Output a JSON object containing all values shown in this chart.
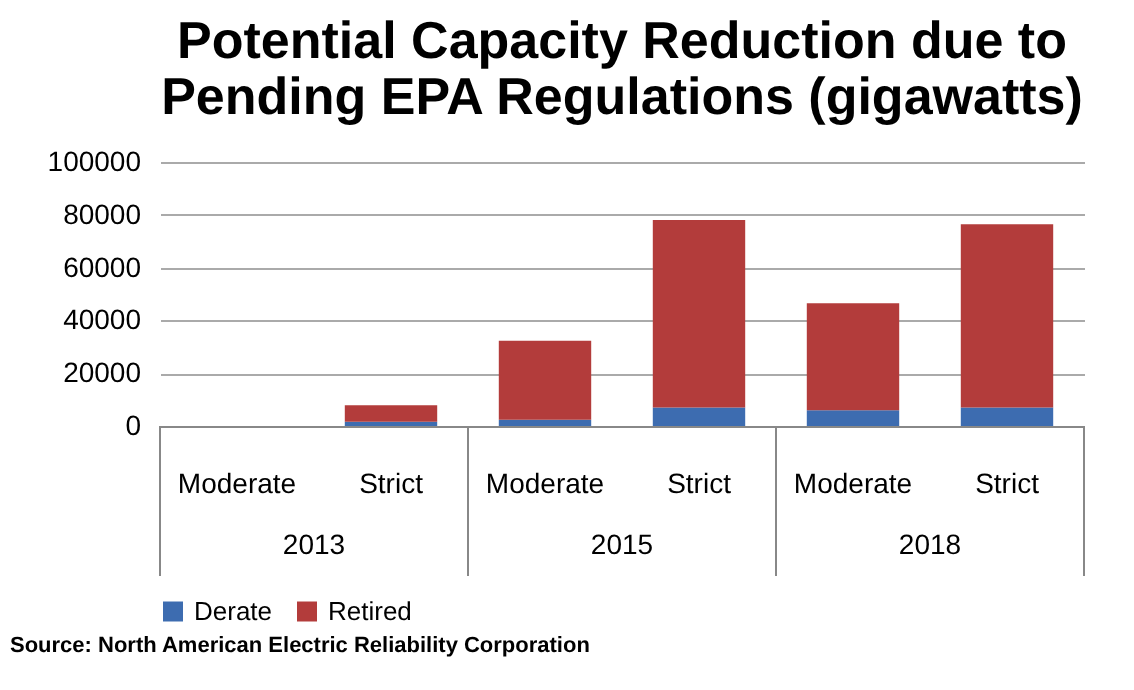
{
  "chart_data": {
    "type": "bar",
    "title": "Potential Capacity Reduction due to Pending EPA Regulations (gigawatts)",
    "categories": [
      "Moderate",
      "Strict",
      "Moderate",
      "Strict",
      "Moderate",
      "Strict"
    ],
    "stacked": true,
    "series": [
      {
        "name": "Derate",
        "color": "#3d6cb0",
        "values": [
          0,
          1600,
          2400,
          7000,
          6000,
          7000
        ]
      },
      {
        "name": "Retired",
        "color": "#b33c3b",
        "values": [
          0,
          6300,
          29900,
          71000,
          40500,
          69400
        ]
      }
    ],
    "ylim": [
      0,
      100000
    ],
    "yticks": [
      0,
      20000,
      40000,
      60000,
      80000,
      100000
    ],
    "grid": "y",
    "legend": "bottom",
    "annotations": [
      "2013",
      "2015",
      "2018",
      "Source: North American Electric Reliability Corporation"
    ]
  }
}
